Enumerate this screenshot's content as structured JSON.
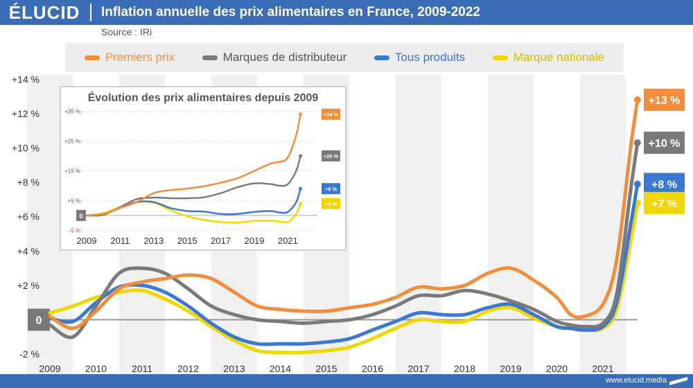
{
  "brand": {
    "logo": "ÉLUCID",
    "website": "www.elucid.media"
  },
  "header": {
    "title": "Inflation annuelle des prix alimentaires en France, 2009-2022",
    "source": "Source : IRi"
  },
  "colors": {
    "premiers_prix": "#f28e3b",
    "mdd": "#7a7a7a",
    "tous_produits": "#3a78d1",
    "marque_nationale": "#f0d700",
    "header_bg": "#3a6db5",
    "band": "#ececec"
  },
  "chart_data": [
    {
      "type": "line",
      "title": "Inflation annuelle des prix alimentaires en France, 2009-2022",
      "xlabel": "",
      "ylabel": "",
      "x_ticks": [
        "2009",
        "2010",
        "2011",
        "2012",
        "2013",
        "2014",
        "2015",
        "2016",
        "2017",
        "2018",
        "2019",
        "2020",
        "2021"
      ],
      "y_ticks": [
        "+14 %",
        "+12 %",
        "+10 %",
        "+8 %",
        "+6 %",
        "+4 %",
        "+2 %",
        "0",
        "-2 %"
      ],
      "ylim": [
        -2,
        14
      ],
      "zero_label": "0",
      "legend_position": "top",
      "grid": "alternating vertical bands",
      "series": [
        {
          "name": "Premiers prix",
          "color": "#f28e3b",
          "end_label": "+13 %",
          "x": [
            2009.0,
            2009.5,
            2010.0,
            2010.5,
            2011.0,
            2011.5,
            2012.0,
            2012.5,
            2013.0,
            2013.5,
            2014.0,
            2014.5,
            2015.0,
            2015.5,
            2016.0,
            2016.5,
            2017.0,
            2017.5,
            2018.0,
            2018.5,
            2019.0,
            2019.5,
            2020.0,
            2020.3,
            2020.6,
            2021.0,
            2021.3,
            2021.6,
            2021.75
          ],
          "y": [
            0.2,
            -0.5,
            0.5,
            1.8,
            2.2,
            2.4,
            2.6,
            2.4,
            1.6,
            0.8,
            0.6,
            0.5,
            0.5,
            0.7,
            0.9,
            1.3,
            1.9,
            1.8,
            2.0,
            2.7,
            3.0,
            2.3,
            1.3,
            0.3,
            0.2,
            0.9,
            3.5,
            10.0,
            12.8
          ]
        },
        {
          "name": "Marques de distributeur",
          "color": "#7a7a7a",
          "end_label": "+10 %",
          "x": [
            2009.0,
            2009.5,
            2010.0,
            2010.5,
            2011.0,
            2011.5,
            2012.0,
            2012.5,
            2013.0,
            2013.5,
            2014.0,
            2014.5,
            2015.0,
            2015.5,
            2016.0,
            2016.5,
            2017.0,
            2017.5,
            2018.0,
            2018.5,
            2019.0,
            2019.5,
            2020.0,
            2020.3,
            2020.6,
            2021.0,
            2021.3,
            2021.6,
            2021.75
          ],
          "y": [
            -0.3,
            -1.0,
            0.8,
            2.7,
            3.0,
            2.7,
            1.8,
            0.8,
            0.3,
            0.0,
            -0.1,
            -0.2,
            -0.1,
            0.0,
            0.3,
            0.8,
            1.4,
            1.4,
            1.7,
            1.5,
            1.1,
            0.6,
            -0.1,
            -0.3,
            -0.4,
            -0.2,
            1.5,
            7.5,
            10.3
          ]
        },
        {
          "name": "Tous produits",
          "color": "#3a78d1",
          "end_label": "+8 %",
          "x": [
            2009.0,
            2009.5,
            2010.0,
            2010.5,
            2011.0,
            2011.5,
            2012.0,
            2012.5,
            2013.0,
            2013.5,
            2014.0,
            2014.5,
            2015.0,
            2015.5,
            2016.0,
            2016.5,
            2017.0,
            2017.5,
            2018.0,
            2018.5,
            2019.0,
            2019.5,
            2020.0,
            2020.3,
            2020.6,
            2021.0,
            2021.3,
            2021.6,
            2021.75
          ],
          "y": [
            0.1,
            -0.1,
            1.0,
            1.9,
            2.0,
            1.6,
            0.8,
            -0.2,
            -1.0,
            -1.4,
            -1.4,
            -1.4,
            -1.3,
            -1.1,
            -0.6,
            -0.1,
            0.4,
            0.3,
            0.3,
            0.7,
            0.9,
            0.3,
            -0.4,
            -0.5,
            -0.6,
            -0.4,
            1.0,
            5.5,
            7.9
          ]
        },
        {
          "name": "Marque nationale",
          "color": "#f0d700",
          "end_label": "+7 %",
          "x": [
            2009.0,
            2009.5,
            2010.0,
            2010.5,
            2011.0,
            2011.5,
            2012.0,
            2012.5,
            2013.0,
            2013.5,
            2014.0,
            2014.5,
            2015.0,
            2015.5,
            2016.0,
            2016.5,
            2017.0,
            2017.5,
            2018.0,
            2018.5,
            2019.0,
            2019.5,
            2020.0,
            2020.3,
            2020.6,
            2021.0,
            2021.3,
            2021.6,
            2021.75
          ],
          "y": [
            0.4,
            0.8,
            1.3,
            1.6,
            1.7,
            1.2,
            0.5,
            -0.4,
            -1.2,
            -1.8,
            -1.9,
            -1.9,
            -1.8,
            -1.6,
            -1.1,
            -0.5,
            0.0,
            -0.1,
            -0.1,
            0.5,
            0.7,
            0.1,
            -0.4,
            -0.5,
            -0.6,
            -0.5,
            0.6,
            4.5,
            6.8
          ]
        }
      ]
    },
    {
      "type": "line",
      "title": "Évolution des prix alimentaires depuis 2009",
      "xlabel": "",
      "ylabel": "",
      "x_ticks": [
        "2009",
        "2011",
        "2013",
        "2015",
        "2017",
        "2019",
        "2021"
      ],
      "y_ticks": [
        "+35 %",
        "+25 %",
        "+15 %",
        "+5 %",
        "-5 %"
      ],
      "ylim": [
        -5,
        37
      ],
      "zero_label": "0",
      "grid": "dotted horizontal lines",
      "series": [
        {
          "name": "Premiers prix",
          "color": "#f28e3b",
          "end_label": "+34 %",
          "x": [
            2009,
            2010,
            2011,
            2012,
            2013,
            2014,
            2015,
            2016,
            2017,
            2018,
            2019,
            2020,
            2020.5,
            2021,
            2021.5,
            2021.75
          ],
          "y": [
            0,
            0.5,
            2.5,
            4.5,
            7.5,
            8.5,
            9.0,
            9.8,
            11.0,
            12.5,
            15.0,
            17.5,
            18.0,
            19.5,
            27.0,
            34.0
          ]
        },
        {
          "name": "Marques de distributeur",
          "color": "#7a7a7a",
          "end_label": "+20 %",
          "x": [
            2009,
            2010,
            2011,
            2012,
            2013,
            2014,
            2015,
            2016,
            2017,
            2018,
            2019,
            2020,
            2020.5,
            2021,
            2021.5,
            2021.75
          ],
          "y": [
            0,
            0.2,
            2.8,
            5.5,
            6.0,
            5.8,
            5.8,
            6.1,
            7.5,
            9.5,
            10.8,
            10.5,
            10.0,
            10.5,
            15.0,
            20.0
          ]
        },
        {
          "name": "Tous produits",
          "color": "#3a78d1",
          "end_label": "+9 %",
          "x": [
            2009,
            2010,
            2011,
            2012,
            2013,
            2014,
            2015,
            2016,
            2017,
            2018,
            2019,
            2020,
            2020.5,
            2021,
            2021.5,
            2021.75
          ],
          "y": [
            0,
            0.5,
            2.5,
            4.5,
            4.5,
            2.5,
            1.5,
            1.3,
            0.5,
            0.5,
            1.2,
            1.5,
            1.0,
            1.2,
            4.5,
            9.0
          ]
        },
        {
          "name": "Marque nationale",
          "color": "#f0d700",
          "end_label": "+4 %",
          "x": [
            2009,
            2010,
            2011,
            2012,
            2013,
            2014,
            2015,
            2016,
            2017,
            2018,
            2019,
            2020,
            2020.5,
            2021,
            2021.5,
            2021.75
          ],
          "y": [
            0,
            0.8,
            2.8,
            4.5,
            4.3,
            1.8,
            -0.3,
            -1.5,
            -2.2,
            -2.4,
            -1.8,
            -1.8,
            -2.0,
            -2.2,
            0.5,
            4.0
          ]
        }
      ]
    }
  ]
}
